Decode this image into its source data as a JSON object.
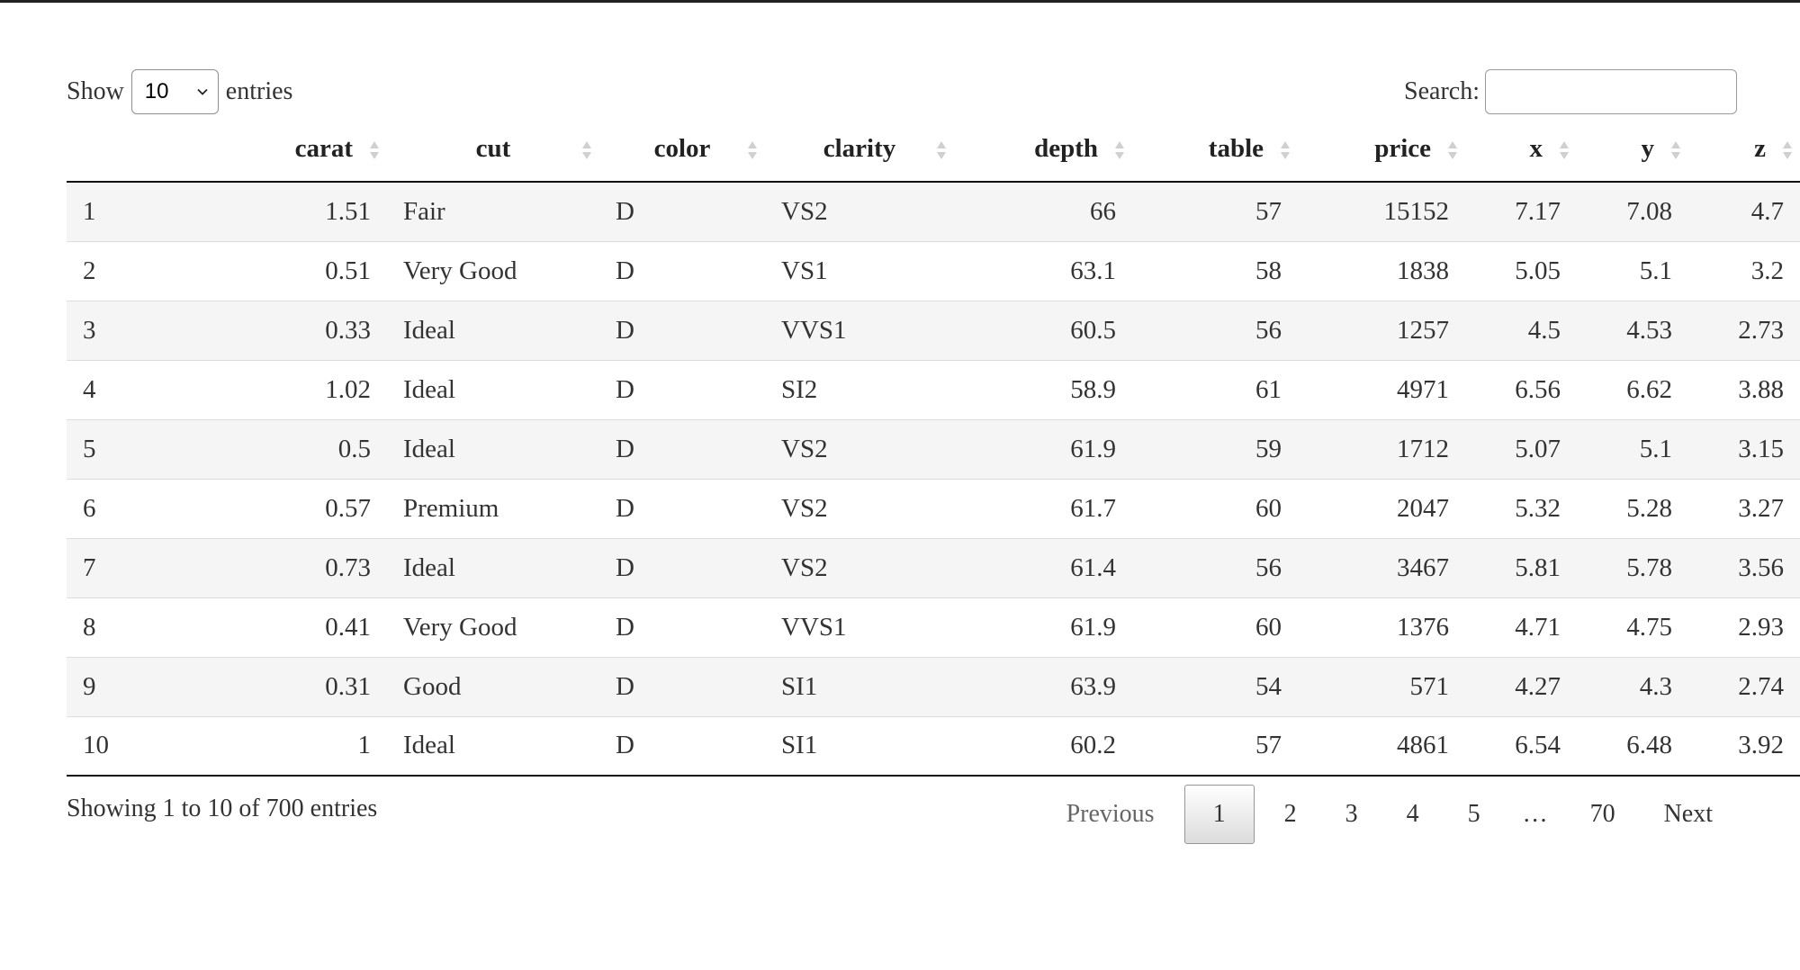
{
  "length": {
    "prefix": "Show",
    "selected": "10",
    "suffix": "entries"
  },
  "search": {
    "label": "Search:",
    "value": ""
  },
  "columns": [
    {
      "key": "index",
      "label": ""
    },
    {
      "key": "carat",
      "label": "carat"
    },
    {
      "key": "cut",
      "label": "cut"
    },
    {
      "key": "color",
      "label": "color"
    },
    {
      "key": "clarity",
      "label": "clarity"
    },
    {
      "key": "depth",
      "label": "depth"
    },
    {
      "key": "table",
      "label": "table"
    },
    {
      "key": "price",
      "label": "price"
    },
    {
      "key": "x",
      "label": "x"
    },
    {
      "key": "y",
      "label": "y"
    },
    {
      "key": "z",
      "label": "z"
    }
  ],
  "rows": [
    [
      "1",
      "1.51",
      "Fair",
      "D",
      "VS2",
      "66",
      "57",
      "15152",
      "7.17",
      "7.08",
      "4.7"
    ],
    [
      "2",
      "0.51",
      "Very Good",
      "D",
      "VS1",
      "63.1",
      "58",
      "1838",
      "5.05",
      "5.1",
      "3.2"
    ],
    [
      "3",
      "0.33",
      "Ideal",
      "D",
      "VVS1",
      "60.5",
      "56",
      "1257",
      "4.5",
      "4.53",
      "2.73"
    ],
    [
      "4",
      "1.02",
      "Ideal",
      "D",
      "SI2",
      "58.9",
      "61",
      "4971",
      "6.56",
      "6.62",
      "3.88"
    ],
    [
      "5",
      "0.5",
      "Ideal",
      "D",
      "VS2",
      "61.9",
      "59",
      "1712",
      "5.07",
      "5.1",
      "3.15"
    ],
    [
      "6",
      "0.57",
      "Premium",
      "D",
      "VS2",
      "61.7",
      "60",
      "2047",
      "5.32",
      "5.28",
      "3.27"
    ],
    [
      "7",
      "0.73",
      "Ideal",
      "D",
      "VS2",
      "61.4",
      "56",
      "3467",
      "5.81",
      "5.78",
      "3.56"
    ],
    [
      "8",
      "0.41",
      "Very Good",
      "D",
      "VVS1",
      "61.9",
      "60",
      "1376",
      "4.71",
      "4.75",
      "2.93"
    ],
    [
      "9",
      "0.31",
      "Good",
      "D",
      "SI1",
      "63.9",
      "54",
      "571",
      "4.27",
      "4.3",
      "2.74"
    ],
    [
      "10",
      "1",
      "Ideal",
      "D",
      "SI1",
      "60.2",
      "57",
      "4861",
      "6.54",
      "6.48",
      "3.92"
    ]
  ],
  "info": "Showing 1 to 10 of 700 entries",
  "pagination": {
    "previous": "Previous",
    "pages": [
      "1",
      "2",
      "3",
      "4",
      "5"
    ],
    "current": "1",
    "ellipsis": "…",
    "last": "70",
    "next": "Next"
  },
  "icons": {
    "sort": "sort-both-icon",
    "dropdown": "chevron-down-icon"
  }
}
